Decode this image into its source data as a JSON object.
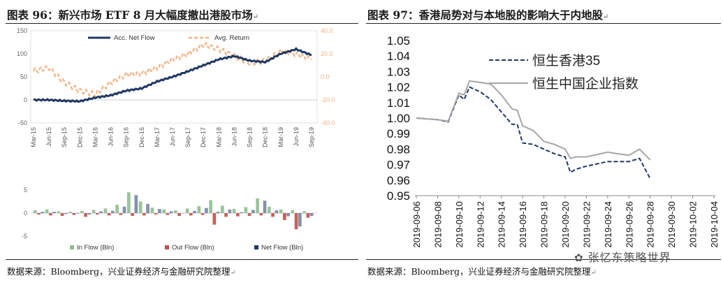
{
  "left": {
    "title": "图表 96：新兴市场 ETF 8 月大幅度撤出港股市场",
    "source": "数据来源：Bloomberg，兴业证券经济与金融研究院整理"
  },
  "right": {
    "title": "图表 97：香港局势对与本地股的影响大于内地股",
    "source": "数据来源：Bloomberg，兴业证券经济与金融研究院整理"
  },
  "watermark": "张忆东策略世界",
  "para_mark": "↵",
  "colors": {
    "navy": "#1f3864",
    "orange": "#f4b183",
    "green": "#8fbc8f",
    "red": "#c0504d",
    "gray": "#a6a6a6",
    "dark_blue": "#1f3864"
  },
  "chart_data": [
    {
      "type": "line",
      "title": "",
      "x": [
        "Mar-15",
        "Jun-15",
        "Sep-15",
        "Dec-15",
        "Mar-16",
        "Jun-16",
        "Sep-16",
        "Dec-16",
        "Mar-17",
        "Jun-17",
        "Sep-17",
        "Dec-17",
        "Mar-18",
        "Jun-18",
        "Sep-18",
        "Dec-18",
        "Mar-19",
        "Jun-19",
        "Sep-19"
      ],
      "ylim": [
        -50,
        150
      ],
      "ylim_right": [
        -40,
        40
      ],
      "yticks": [
        "150",
        "100",
        "50",
        "0",
        "-50"
      ],
      "yticks_right": [
        "40.0",
        "20.0",
        "0.0",
        "-20.0",
        "-40.0"
      ],
      "legend": [
        "Acc. Net Flow",
        "Avg. Return"
      ],
      "series": [
        {
          "name": "Acc. Net Flow",
          "axis": "left",
          "values": [
            0,
            0,
            -2,
            -3,
            5,
            10,
            20,
            25,
            40,
            50,
            62,
            75,
            88,
            95,
            85,
            82,
            100,
            110,
            97
          ]
        },
        {
          "name": "Avg. Return",
          "axis": "right",
          "values": [
            5,
            8,
            -5,
            -12,
            -15,
            -5,
            2,
            3,
            8,
            15,
            20,
            28,
            24,
            18,
            12,
            14,
            22,
            20,
            15
          ]
        }
      ]
    },
    {
      "type": "bar",
      "title": "",
      "ylim": [
        -5,
        5
      ],
      "yticks": [
        "5",
        "0",
        "-5"
      ],
      "legend": [
        "In Flow (Bln)",
        "Out Flow (Bln)",
        "Net Flow (Bln)"
      ],
      "series": [
        {
          "name": "In Flow (Bln)",
          "values": [
            0.6,
            0.8,
            0.4,
            0.3,
            0.5,
            0.7,
            1.0,
            1.8,
            4.5,
            2.5,
            1.2,
            0.8,
            0.6,
            1.0,
            1.5,
            2.8,
            1.6,
            0.9,
            1.3,
            3.2,
            1.4,
            0.8,
            0.6,
            0.4
          ]
        },
        {
          "name": "Out Flow (Bln)",
          "values": [
            -0.3,
            -0.5,
            -0.6,
            -0.4,
            -0.8,
            -0.3,
            -0.5,
            -0.4,
            -0.6,
            -0.5,
            -0.3,
            -0.4,
            -0.6,
            -0.5,
            -0.4,
            -2.5,
            -0.8,
            -0.7,
            -0.6,
            -0.5,
            -0.8,
            -1.5,
            -3.5,
            -1.0
          ]
        },
        {
          "name": "Net Flow (Bln)",
          "values": [
            0.3,
            0.3,
            -0.2,
            -0.1,
            -0.3,
            0.4,
            0.5,
            1.4,
            3.9,
            2.0,
            0.9,
            0.4,
            0.0,
            0.5,
            1.1,
            0.3,
            0.8,
            0.2,
            0.7,
            2.7,
            0.6,
            -0.7,
            -2.9,
            -0.6
          ]
        }
      ]
    },
    {
      "type": "line",
      "title": "",
      "x": [
        "2019-09-06",
        "2019-09-08",
        "2019-09-10",
        "2019-09-12",
        "2019-09-14",
        "2019-09-16",
        "2019-09-18",
        "2019-09-20",
        "2019-09-22",
        "2019-09-24",
        "2019-09-26",
        "2019-09-28",
        "2019-09-30",
        "2019-10-02",
        "2019-10-04"
      ],
      "ylim": [
        0.95,
        1.05
      ],
      "yticks": [
        "1.05",
        "1.04",
        "1.03",
        "1.02",
        "1.01",
        "1.00",
        "0.99",
        "0.98",
        "0.97",
        "0.96",
        "0.95"
      ],
      "legend": [
        "恒生香港35",
        "恒生中国企业指数"
      ],
      "series": [
        {
          "name": "恒生香港35",
          "style": "dashed",
          "points": [
            [
              0,
              1.0
            ],
            [
              2,
              0.999
            ],
            [
              3,
              0.9975
            ],
            [
              4,
              1.015
            ],
            [
              4.5,
              1.012
            ],
            [
              5,
              1.02
            ],
            [
              6,
              1.017
            ],
            [
              7,
              1.012
            ],
            [
              8,
              1.004
            ],
            [
              9,
              0.996
            ],
            [
              9.5,
              0.996
            ],
            [
              10,
              0.984
            ],
            [
              11,
              0.983
            ],
            [
              12,
              0.98
            ],
            [
              13,
              0.977
            ],
            [
              14,
              0.975
            ],
            [
              14.5,
              0.965
            ],
            [
              15,
              0.967
            ],
            [
              16,
              0.969
            ],
            [
              18,
              0.972
            ],
            [
              20,
              0.972
            ],
            [
              21,
              0.974
            ],
            [
              22,
              0.961
            ]
          ]
        },
        {
          "name": "恒生中国企业指数",
          "style": "solid",
          "points": [
            [
              0,
              1.0
            ],
            [
              2,
              0.999
            ],
            [
              3,
              0.998
            ],
            [
              4,
              1.016
            ],
            [
              4.5,
              1.015
            ],
            [
              5,
              1.024
            ],
            [
              7,
              1.022
            ],
            [
              8,
              1.015
            ],
            [
              9,
              1.006
            ],
            [
              9.5,
              1.005
            ],
            [
              10,
              0.995
            ],
            [
              11,
              0.992
            ],
            [
              12,
              0.985
            ],
            [
              13,
              0.983
            ],
            [
              14,
              0.98
            ],
            [
              14.5,
              0.974
            ],
            [
              15,
              0.975
            ],
            [
              16,
              0.975
            ],
            [
              18,
              0.978
            ],
            [
              19,
              0.977
            ],
            [
              20,
              0.976
            ],
            [
              21,
              0.98
            ],
            [
              22,
              0.973
            ]
          ]
        }
      ]
    }
  ]
}
